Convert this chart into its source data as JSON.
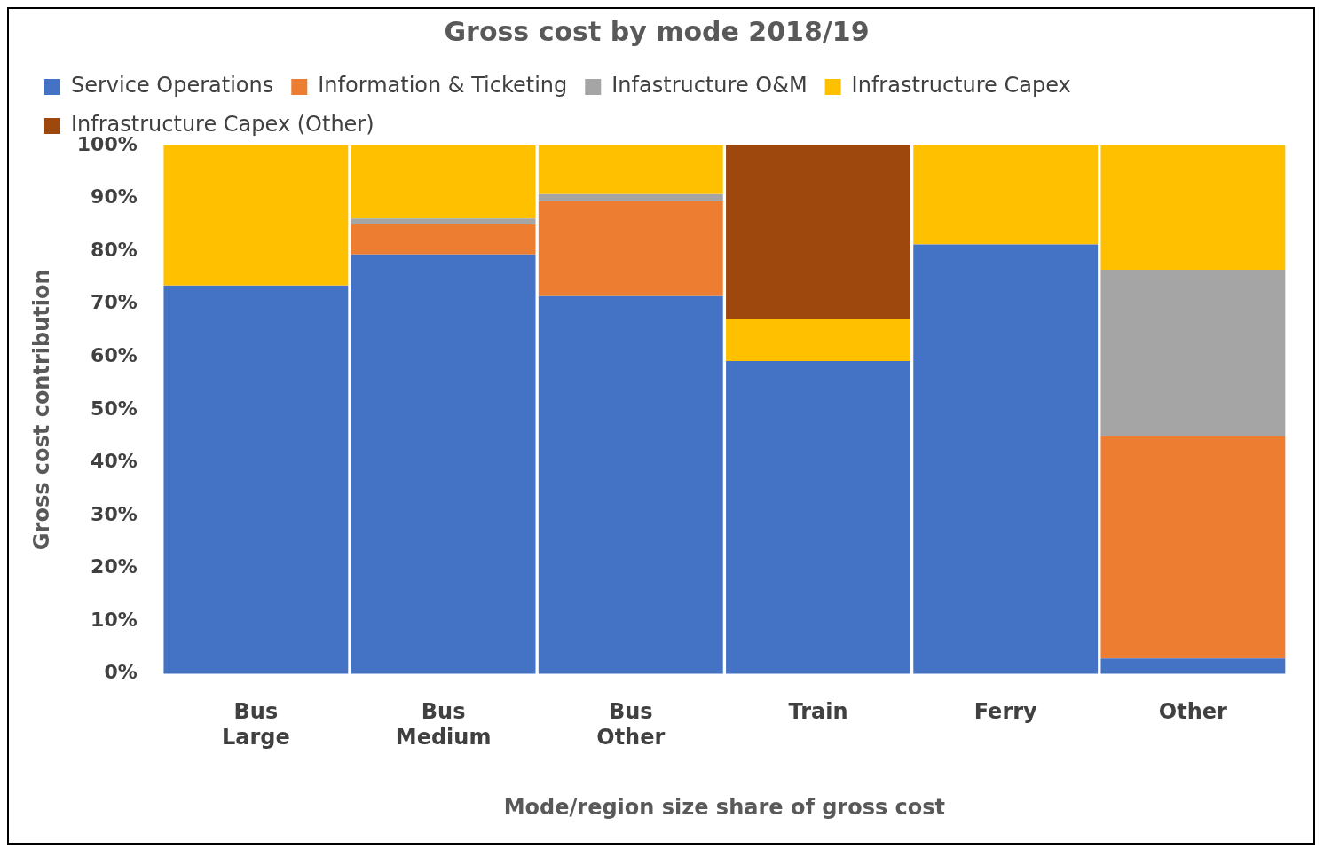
{
  "chart_data": {
    "type": "bar",
    "stacked": true,
    "title": "Gross cost by mode 2018/19",
    "xlabel": "Mode/region size share of gross cost",
    "ylabel": "Gross cost contribution",
    "categories": [
      "Bus Large",
      "Bus Medium",
      "Bus Other",
      "Train",
      "Ferry",
      "Other"
    ],
    "series": [
      {
        "name": "Service Operations",
        "color": "#4472c4",
        "values": [
          73.5,
          79.4,
          71.5,
          59.2,
          81.3,
          2.9
        ]
      },
      {
        "name": "Information & Ticketing",
        "color": "#ed7d31",
        "values": [
          0,
          5.7,
          18,
          0,
          0,
          42.1
        ]
      },
      {
        "name": "Infastructure O&M",
        "color": "#a5a5a5",
        "values": [
          0,
          1.1,
          1.3,
          0,
          0,
          31.5
        ]
      },
      {
        "name": "Infrastructure Capex",
        "color": "#ffc000",
        "values": [
          26.5,
          13.8,
          9.2,
          7.9,
          18.7,
          23.5
        ]
      },
      {
        "name": "Infrastructure Capex (Other)",
        "color": "#9e480e",
        "values": [
          0,
          0,
          0,
          32.9,
          0,
          0
        ]
      }
    ],
    "ylim": [
      0,
      100
    ],
    "yticks": [
      {
        "value": 0,
        "label": "0%"
      },
      {
        "value": 10,
        "label": "10%"
      },
      {
        "value": 20,
        "label": "20%"
      },
      {
        "value": 30,
        "label": "30%"
      },
      {
        "value": 40,
        "label": "40%"
      },
      {
        "value": 50,
        "label": "50%"
      },
      {
        "value": 60,
        "label": "60%"
      },
      {
        "value": 70,
        "label": "70%"
      },
      {
        "value": 80,
        "label": "80%"
      },
      {
        "value": 90,
        "label": "90%"
      },
      {
        "value": 100,
        "label": "100%"
      }
    ],
    "grid": false,
    "legend": "top"
  }
}
